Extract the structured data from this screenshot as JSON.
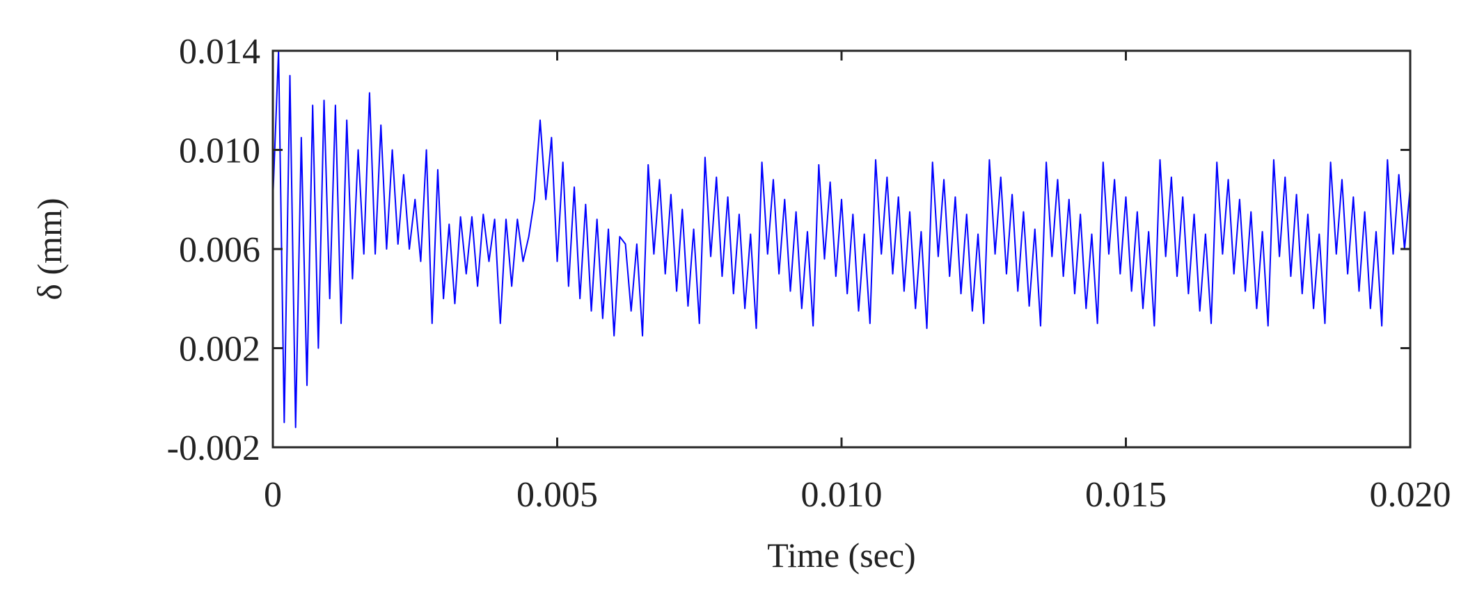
{
  "chart_data": {
    "type": "line",
    "x_label": "Time (sec)",
    "y_label": "δ (mm)",
    "xlim": [
      0,
      0.02
    ],
    "ylim": [
      -0.002,
      0.014
    ],
    "xticks": [
      0,
      0.005,
      {
        "value": 0.01,
        "label": "0.010"
      },
      0.015,
      {
        "value": 0.02,
        "label": "0.020"
      }
    ],
    "yticks": [
      -0.002,
      0.002,
      0.006,
      {
        "value": 0.01,
        "label": "0.010"
      },
      0.014
    ],
    "grid": false,
    "series": [
      {
        "color": "#0000ff",
        "x": [
          0,
          0.0001,
          0.0002,
          0.0003,
          0.0004,
          0.0005,
          0.0006,
          0.0007,
          0.0008,
          0.0009,
          0.001,
          0.0011,
          0.0012,
          0.0013,
          0.0014,
          0.0015,
          0.0016,
          0.0017,
          0.0018,
          0.0019,
          0.002,
          0.0021,
          0.0022,
          0.0023,
          0.0024,
          0.0025,
          0.0026,
          0.0027,
          0.0028,
          0.0029,
          0.003,
          0.0031,
          0.0032,
          0.0033,
          0.0034,
          0.0035,
          0.0036,
          0.0037,
          0.0038,
          0.0039,
          0.004,
          0.0041,
          0.0042,
          0.0043,
          0.0044,
          0.0045,
          0.0046,
          0.0047,
          0.0048,
          0.0049,
          0.005,
          0.0051,
          0.0052,
          0.0053,
          0.0054,
          0.0055,
          0.0056,
          0.0057,
          0.0058,
          0.0059,
          0.006,
          0.0061,
          0.0062,
          0.0063,
          0.0064,
          0.0065,
          0.0066,
          0.0067,
          0.0068,
          0.0069,
          0.007,
          0.0071,
          0.0072,
          0.0073,
          0.0074,
          0.0075,
          0.0076,
          0.0077,
          0.0078,
          0.0079,
          0.008,
          0.0081,
          0.0082,
          0.0083,
          0.0084,
          0.0085,
          0.0086,
          0.0087,
          0.0088,
          0.0089,
          0.009,
          0.0091,
          0.0092,
          0.0093,
          0.0094,
          0.0095,
          0.0096,
          0.0097,
          0.0098,
          0.0099,
          0.01,
          0.0101,
          0.0102,
          0.0103,
          0.0104,
          0.0105,
          0.0106,
          0.0107,
          0.0108,
          0.0109,
          0.011,
          0.0111,
          0.0112,
          0.0113,
          0.0114,
          0.0115,
          0.0116,
          0.0117,
          0.0118,
          0.0119,
          0.012,
          0.0121,
          0.0122,
          0.0123,
          0.0124,
          0.0125,
          0.0126,
          0.0127,
          0.0128,
          0.0129,
          0.013,
          0.0131,
          0.0132,
          0.0133,
          0.0134,
          0.0135,
          0.0136,
          0.0137,
          0.0138,
          0.0139,
          0.014,
          0.0141,
          0.0142,
          0.0143,
          0.0144,
          0.0145,
          0.0146,
          0.0147,
          0.0148,
          0.0149,
          0.015,
          0.0151,
          0.0152,
          0.0153,
          0.0154,
          0.0155,
          0.0156,
          0.0157,
          0.0158,
          0.0159,
          0.016,
          0.0161,
          0.0162,
          0.0163,
          0.0164,
          0.0165,
          0.0166,
          0.0167,
          0.0168,
          0.0169,
          0.017,
          0.0171,
          0.0172,
          0.0173,
          0.0174,
          0.0175,
          0.0176,
          0.0177,
          0.0178,
          0.0179,
          0.018,
          0.0181,
          0.0182,
          0.0183,
          0.0184,
          0.0185,
          0.0186,
          0.0187,
          0.0188,
          0.0189,
          0.019,
          0.0191,
          0.0192,
          0.0193,
          0.0194,
          0.0195,
          0.0196,
          0.0197,
          0.0198,
          0.0199,
          0.02
        ],
        "values": [
          0.008,
          0.014,
          -0.001,
          0.013,
          -0.0012,
          0.0105,
          0.0005,
          0.0118,
          0.002,
          0.012,
          0.004,
          0.0118,
          0.003,
          0.0112,
          0.0048,
          0.01,
          0.0058,
          0.0123,
          0.0058,
          0.011,
          0.006,
          0.01,
          0.0062,
          0.009,
          0.006,
          0.008,
          0.0055,
          0.01,
          0.003,
          0.0092,
          0.004,
          0.007,
          0.0038,
          0.0073,
          0.005,
          0.0073,
          0.0045,
          0.0074,
          0.0055,
          0.0072,
          0.003,
          0.0072,
          0.0045,
          0.0072,
          0.0055,
          0.0065,
          0.008,
          0.0112,
          0.008,
          0.0105,
          0.0055,
          0.0095,
          0.0045,
          0.0085,
          0.004,
          0.0078,
          0.0035,
          0.0072,
          0.0032,
          0.0068,
          0.0025,
          0.0065,
          0.0062,
          0.0035,
          0.0062,
          0.0025,
          0.0094,
          0.0058,
          0.0088,
          0.005,
          0.0082,
          0.0043,
          0.0076,
          0.0037,
          0.0068,
          0.003,
          0.0097,
          0.0057,
          0.0089,
          0.0049,
          0.0081,
          0.0042,
          0.0074,
          0.0036,
          0.0066,
          0.0028,
          0.0095,
          0.0058,
          0.0088,
          0.005,
          0.008,
          0.0043,
          0.0075,
          0.0036,
          0.0067,
          0.0029,
          0.0094,
          0.0056,
          0.0087,
          0.0049,
          0.008,
          0.0042,
          0.0074,
          0.0035,
          0.0066,
          0.003,
          0.0096,
          0.0058,
          0.0089,
          0.005,
          0.0081,
          0.0043,
          0.0075,
          0.0036,
          0.0067,
          0.0028,
          0.0095,
          0.0057,
          0.0088,
          0.0049,
          0.0081,
          0.0042,
          0.0074,
          0.0035,
          0.0066,
          0.003,
          0.0096,
          0.0058,
          0.0089,
          0.005,
          0.0082,
          0.0043,
          0.0075,
          0.0037,
          0.0068,
          0.0029,
          0.0095,
          0.0057,
          0.0088,
          0.0049,
          0.008,
          0.0042,
          0.0074,
          0.0036,
          0.0066,
          0.003,
          0.0095,
          0.0058,
          0.0088,
          0.005,
          0.0081,
          0.0043,
          0.0075,
          0.0036,
          0.0067,
          0.0029,
          0.0096,
          0.0057,
          0.0089,
          0.0049,
          0.0081,
          0.0042,
          0.0074,
          0.0035,
          0.0066,
          0.003,
          0.0095,
          0.0058,
          0.0088,
          0.005,
          0.008,
          0.0043,
          0.0075,
          0.0036,
          0.0067,
          0.0029,
          0.0096,
          0.0057,
          0.0089,
          0.0049,
          0.0082,
          0.0042,
          0.0074,
          0.0036,
          0.0066,
          0.003,
          0.0095,
          0.0058,
          0.0088,
          0.005,
          0.0081,
          0.0043,
          0.0075,
          0.0036,
          0.0067,
          0.0029,
          0.0096,
          0.0058,
          0.009,
          0.006,
          0.0085
        ]
      }
    ]
  }
}
